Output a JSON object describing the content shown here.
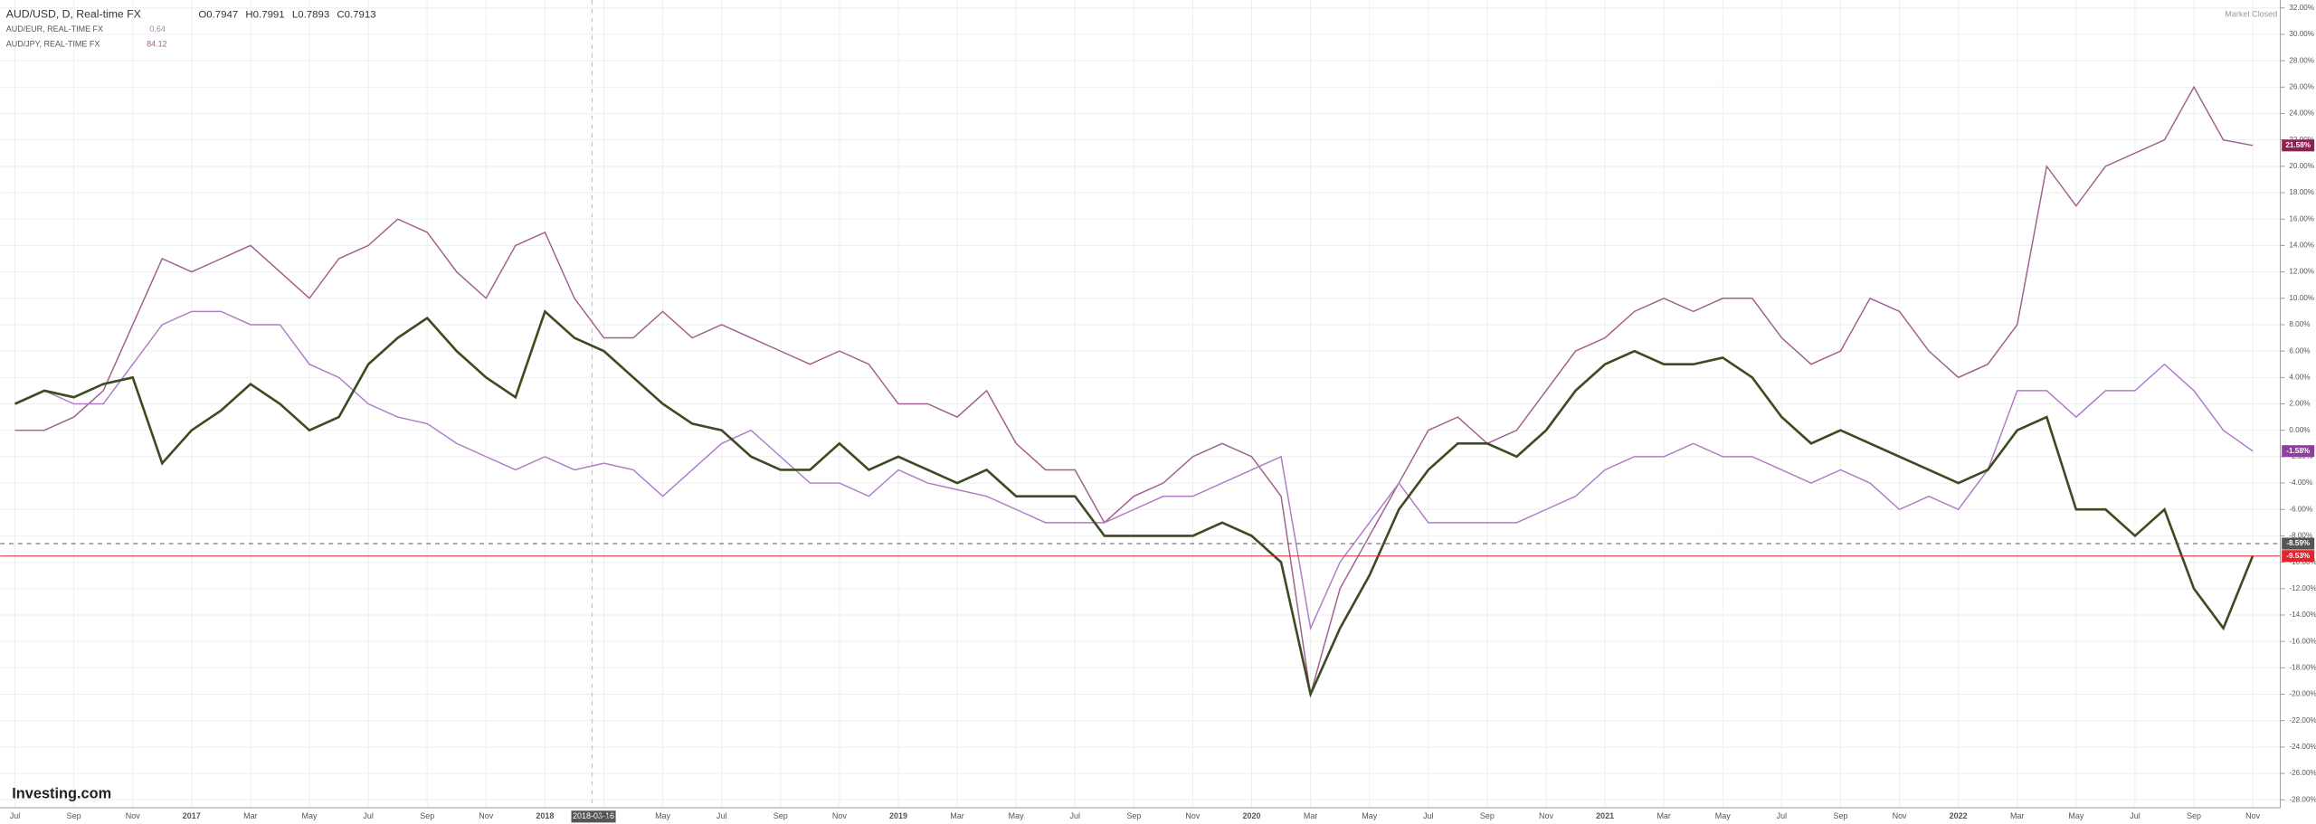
{
  "chart_data": {
    "type": "line",
    "header": {
      "ohlc": [
        {
          "label": "O",
          "value": 0.7947
        },
        {
          "label": "H",
          "value": 0.7991
        },
        {
          "label": "L",
          "value": 0.7893
        },
        {
          "label": "C",
          "value": 0.7913
        }
      ],
      "status": "Market Closed",
      "logo": "Investing.com",
      "crosshair_date": "2018-03-16"
    },
    "categories": [
      "Jul",
      null,
      "Sep",
      null,
      "Nov",
      null,
      "2017",
      null,
      "Mar",
      null,
      "May",
      null,
      "Jul",
      null,
      "Sep",
      null,
      "Nov",
      null,
      "2018",
      null,
      "Mar",
      null,
      "May",
      null,
      "Jul",
      null,
      "Sep",
      null,
      "Nov",
      null,
      "2019",
      null,
      "Mar",
      null,
      "May",
      null,
      "Jul",
      null,
      "Sep",
      null,
      "Nov",
      null,
      "2020",
      null,
      "Mar",
      null,
      "May",
      null,
      "Jul",
      null,
      "Sep",
      null,
      "Nov",
      null,
      "2021",
      null,
      "Mar",
      null,
      "May",
      null,
      "Jul",
      null,
      "Sep",
      null,
      "Nov",
      null,
      "2022",
      null,
      "Mar",
      null,
      "May",
      null,
      "Jul",
      null,
      "Sep",
      null,
      "Nov"
    ],
    "series": [
      {
        "name": "AUD/USD, D, Real-time FX",
        "color": "#3d4a22",
        "values": [
          2,
          3,
          2.5,
          3.5,
          4,
          -2.5,
          0,
          1.5,
          3.5,
          2,
          0,
          1,
          5,
          7,
          8.5,
          6,
          4,
          2.5,
          9,
          7,
          6,
          4,
          2,
          0.5,
          0,
          -2,
          -3,
          -3,
          -1,
          -3,
          -2,
          -3,
          -4,
          -3,
          -5,
          -5,
          -5,
          -8,
          -8,
          -8,
          -8,
          -7,
          -8,
          -10,
          -20,
          -15,
          -11,
          -6,
          -3,
          -1,
          -1,
          -2,
          0,
          3,
          5,
          6,
          5,
          5,
          5.5,
          4,
          1,
          -1,
          0,
          -1,
          -2,
          -3,
          -4,
          -3,
          0,
          1,
          -6,
          -6,
          -8,
          -6,
          -12,
          -15,
          -9.5
        ]
      },
      {
        "name": "AUD/EUR, REAL-TIME FX",
        "legend_value": 0.64,
        "color": "#b07cc6",
        "values": [
          2,
          3,
          2,
          2,
          5,
          8,
          9,
          9,
          8,
          8,
          5,
          4,
          2,
          1,
          0.5,
          -1,
          -2,
          -3,
          -2,
          -3,
          -2.5,
          -3,
          -5,
          -3,
          -1,
          0,
          -2,
          -4,
          -4,
          -5,
          -3,
          -4,
          -4.5,
          -5,
          -6,
          -7,
          -7,
          -7,
          -6,
          -5,
          -5,
          -4,
          -3,
          -2,
          -15,
          -10,
          -7,
          -4,
          -7,
          -7,
          -7,
          -7,
          -6,
          -5,
          -3,
          -2,
          -2,
          -1,
          -2,
          -2,
          -3,
          -4,
          -3,
          -4,
          -6,
          -5,
          -6,
          -3,
          3,
          3,
          1,
          3,
          3,
          5,
          3,
          0,
          -1.58
        ]
      },
      {
        "name": "AUD/JPY, REAL-TIME FX",
        "legend_value": 84.12,
        "color": "#a0608e",
        "values": [
          0,
          0,
          1,
          3,
          8,
          13,
          12,
          13,
          14,
          12,
          10,
          13,
          14,
          16,
          15,
          12,
          10,
          14,
          15,
          10,
          7,
          7,
          9,
          7,
          8,
          7,
          6,
          5,
          6,
          5,
          2,
          2,
          1,
          3,
          -1,
          -3,
          -3,
          -7,
          -5,
          -4,
          -2,
          -1,
          -2,
          -5,
          -20,
          -12,
          -8,
          -4,
          0,
          1,
          -1,
          0,
          3,
          6,
          7,
          9,
          10,
          9,
          10,
          10,
          7,
          5,
          6,
          10,
          9,
          6,
          4,
          5,
          8,
          20,
          17,
          20,
          21,
          22,
          26,
          22,
          21.58
        ]
      }
    ],
    "price_labels": [
      {
        "value": 21.58,
        "label": "21.58%",
        "color": "#8b2252"
      },
      {
        "value": -1.58,
        "label": "-1.58%",
        "color": "#8e3f9e"
      },
      {
        "value": -8.59,
        "label": "-8.59%",
        "color": "#555555"
      },
      {
        "value": -9.53,
        "label": "-9.53%",
        "color": "#e0262c"
      }
    ],
    "ylim": [
      -28.6,
      32.6
    ],
    "yticks": [
      {
        "value": 32,
        "label": "32.00%"
      },
      {
        "value": 30,
        "label": "30.00%"
      },
      {
        "value": 28,
        "label": "28.00%"
      },
      {
        "value": 26,
        "label": "26.00%"
      },
      {
        "value": 24,
        "label": "24.00%"
      },
      {
        "value": 22,
        "label": "22.00%"
      },
      {
        "value": 20,
        "label": "20.00%"
      },
      {
        "value": 18,
        "label": "18.00%"
      },
      {
        "value": 16,
        "label": "16.00%"
      },
      {
        "value": 14,
        "label": "14.00%"
      },
      {
        "value": 12,
        "label": "12.00%"
      },
      {
        "value": 10,
        "label": "10.00%"
      },
      {
        "value": 8,
        "label": "8.00%"
      },
      {
        "value": 6,
        "label": "6.00%"
      },
      {
        "value": 4,
        "label": "4.00%"
      },
      {
        "value": 2,
        "label": "2.00%"
      },
      {
        "value": 0,
        "label": "0.00%"
      },
      {
        "value": -2,
        "label": "-2.00%"
      },
      {
        "value": -4,
        "label": "-4.00%"
      },
      {
        "value": -6,
        "label": "-6.00%"
      },
      {
        "value": -8,
        "label": "-8.00%"
      },
      {
        "value": -10,
        "label": "-10.00%"
      },
      {
        "value": -12,
        "label": "-12.00%"
      },
      {
        "value": -14,
        "label": "-14.00%"
      },
      {
        "value": -16,
        "label": "-16.00%"
      },
      {
        "value": -18,
        "label": "-18.00%"
      },
      {
        "value": -20,
        "label": "-20.00%"
      },
      {
        "value": -22,
        "label": "-22.00%"
      },
      {
        "value": -24,
        "label": "-24.00%"
      },
      {
        "value": -26,
        "label": "-26.00%"
      },
      {
        "value": -28,
        "label": "-28.00%"
      }
    ],
    "grid": true
  }
}
